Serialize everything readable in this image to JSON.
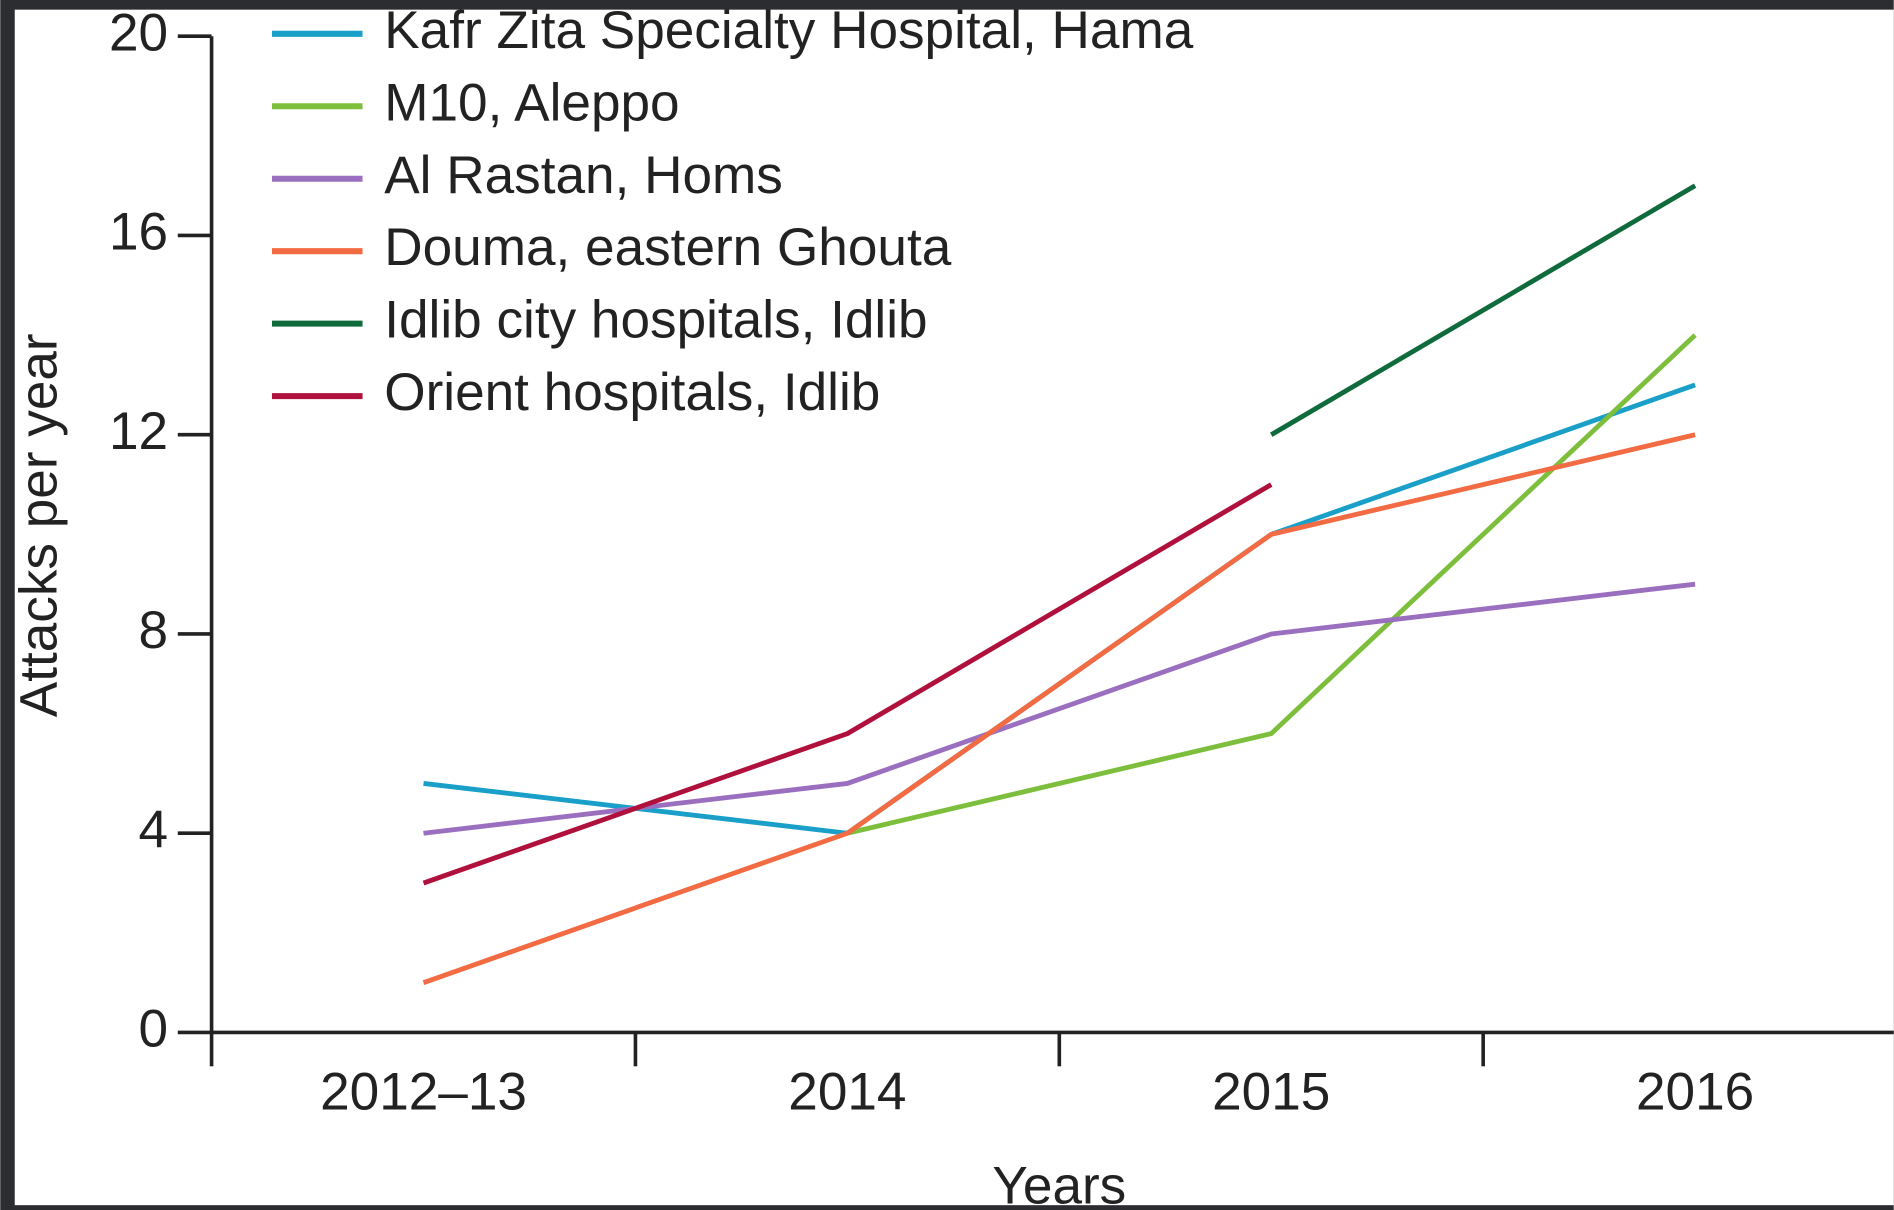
{
  "chart_data": {
    "type": "line",
    "x_label": "Years",
    "y_label": "Attacks per year",
    "categories": [
      "2012–13",
      "2014",
      "2015",
      "2016"
    ],
    "ylim": [
      0,
      20
    ],
    "yticks": [
      0,
      4,
      8,
      12,
      16,
      20
    ],
    "legend": "top-left",
    "series": [
      {
        "name": "Kafr Zita Specialty Hospital, Hama",
        "color": "#1aa0c8",
        "values": [
          5,
          4,
          10,
          13
        ]
      },
      {
        "name": "M10, Aleppo",
        "color": "#7dbf3c",
        "values": [
          null,
          4,
          6,
          14
        ]
      },
      {
        "name": "Al Rastan, Homs",
        "color": "#9b6fc0",
        "values": [
          4,
          5,
          8,
          9
        ]
      },
      {
        "name": "Douma, eastern Ghouta",
        "color": "#f26b43",
        "values": [
          1,
          4,
          10,
          12
        ]
      },
      {
        "name": "Idlib city hospitals, Idlib",
        "color": "#0f6b3c",
        "values": [
          null,
          null,
          12,
          17
        ]
      },
      {
        "name": "Orient hospitals, Idlib",
        "color": "#b0103c",
        "values": [
          3,
          6,
          11,
          null
        ]
      }
    ]
  }
}
